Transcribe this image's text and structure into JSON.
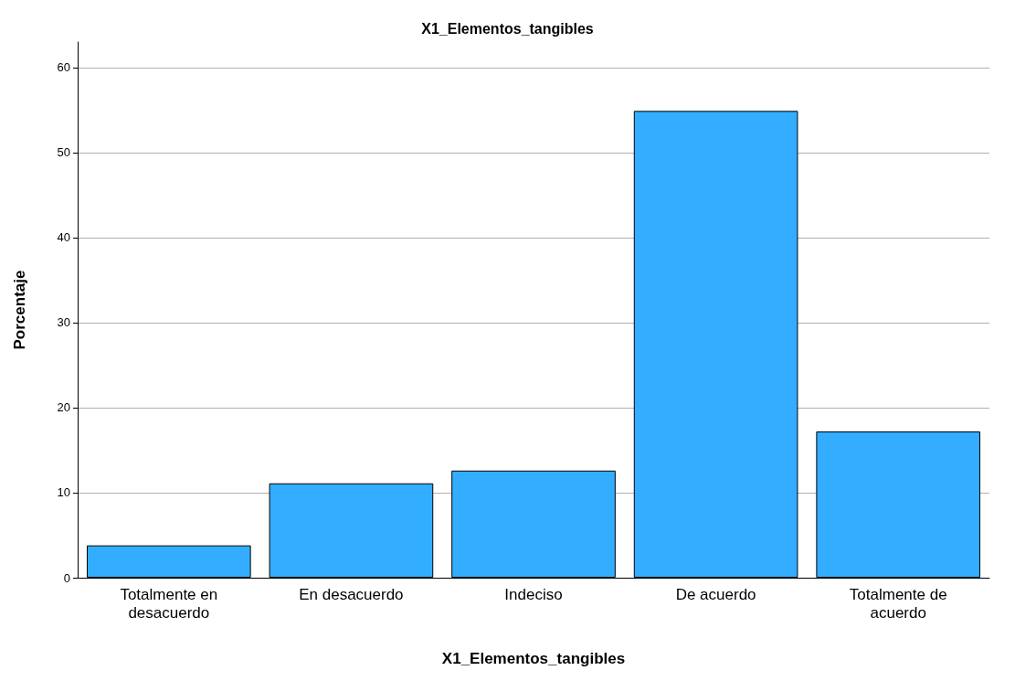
{
  "chart_data": {
    "type": "bar",
    "title": "X1_Elementos_tangibles",
    "xlabel": "X1_Elementos_tangibles",
    "ylabel": "Porcentaje",
    "categories": [
      "Totalmente en desacuerdo",
      "En desacuerdo",
      "Indeciso",
      "De acuerdo",
      "Totalmente de acuerdo"
    ],
    "values": [
      3.8,
      11.1,
      12.6,
      54.9,
      17.2
    ],
    "color": "#33adff",
    "ylim": [
      0,
      63
    ],
    "yticks": [
      0,
      10,
      20,
      30,
      40,
      50,
      60
    ],
    "grid": "y"
  }
}
